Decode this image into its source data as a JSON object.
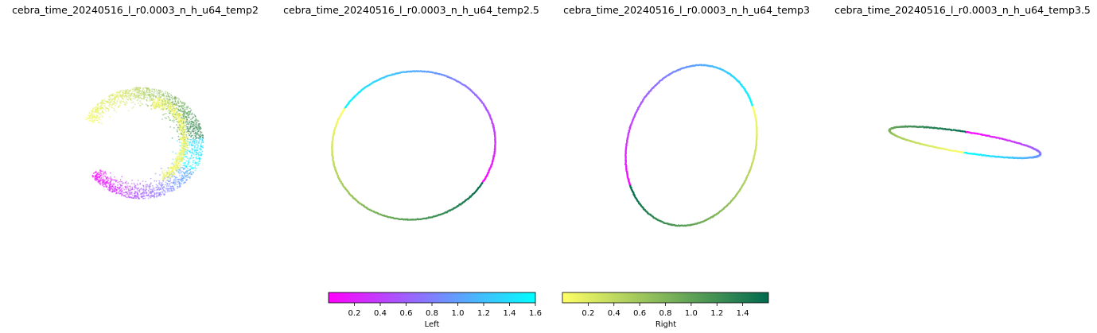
{
  "chart_data": [
    {
      "type": "scatter",
      "title": "cebra_time_20240516_l_r0.0003_n_h_u64_temp2",
      "shape": "crescent"
    },
    {
      "type": "scatter",
      "title": "cebra_time_20240516_l_r0.0003_n_h_u64_temp2.5",
      "shape": "ring"
    },
    {
      "type": "scatter",
      "title": "cebra_time_20240516_l_r0.0003_n_h_u64_temp3",
      "shape": "ring"
    },
    {
      "type": "scatter",
      "title": "cebra_time_20240516_l_r0.0003_n_h_u64_temp3.5",
      "shape": "flat-ring"
    }
  ],
  "colorbars": [
    {
      "label": "Left",
      "range": [
        0,
        1.6
      ],
      "ticks": [
        "0.2",
        "0.4",
        "0.6",
        "0.8",
        "1.0",
        "1.2",
        "1.4",
        "1.6"
      ],
      "tick_values": [
        0.2,
        0.4,
        0.6,
        0.8,
        1.0,
        1.2,
        1.4,
        1.6
      ],
      "colors": [
        "#ff00ff",
        "#00ffff"
      ]
    },
    {
      "label": "Right",
      "range": [
        0,
        1.6
      ],
      "ticks": [
        "0.2",
        "0.4",
        "0.6",
        "0.8",
        "1.0",
        "1.2",
        "1.4"
      ],
      "tick_values": [
        0.2,
        0.4,
        0.6,
        0.8,
        1.0,
        1.2,
        1.4
      ],
      "colors": [
        "#ffff66",
        "#006a4e"
      ]
    }
  ]
}
